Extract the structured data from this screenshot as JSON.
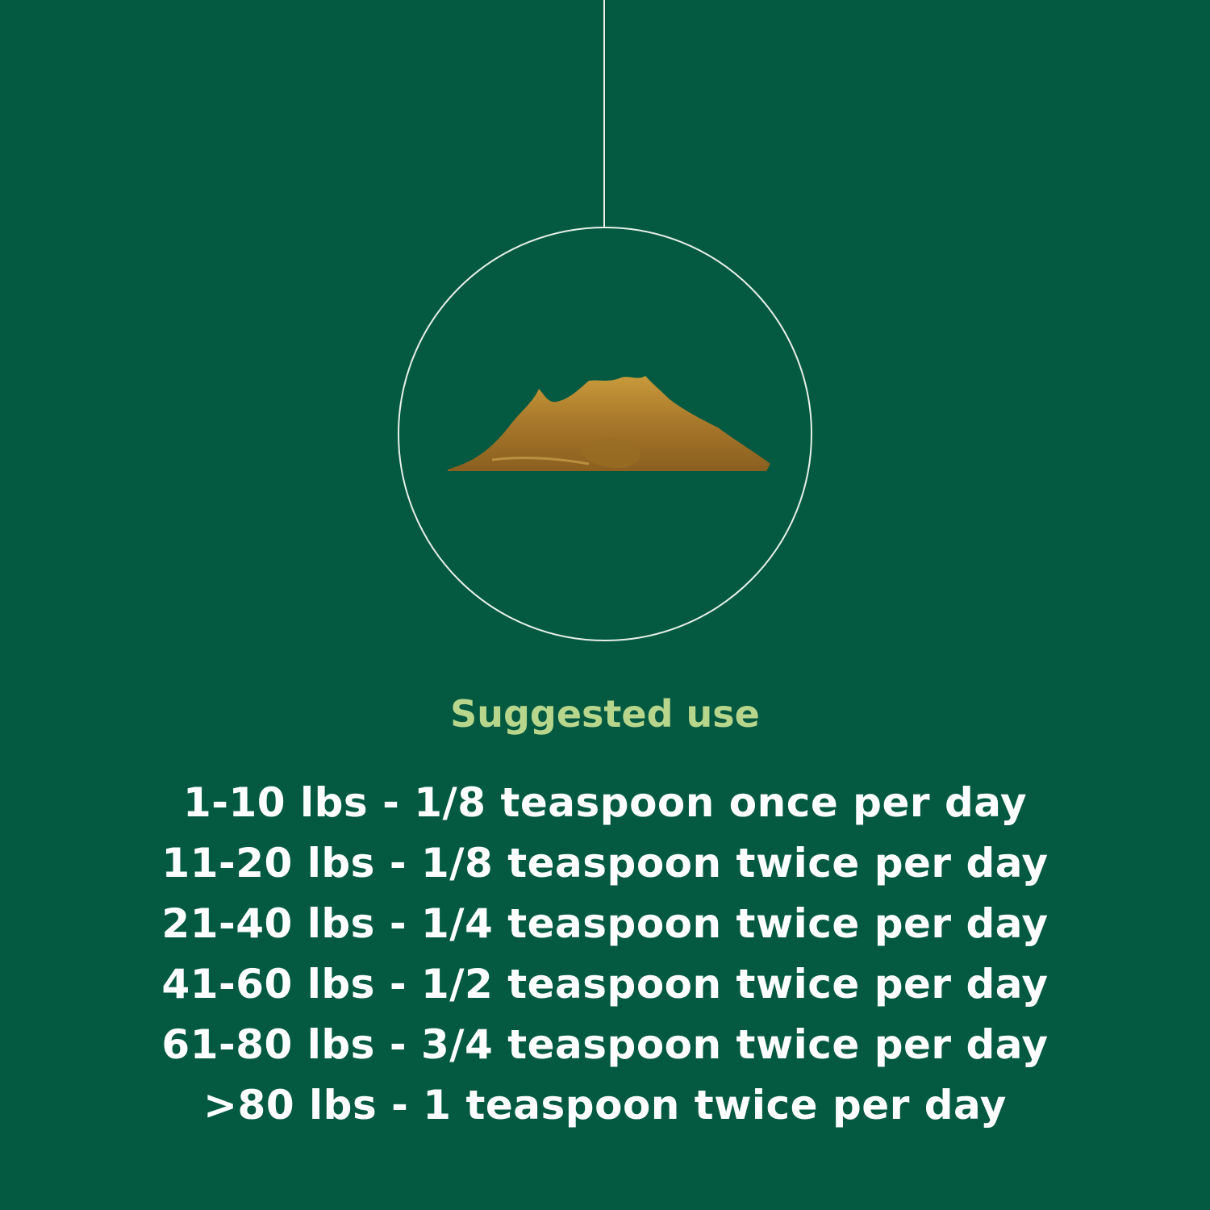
{
  "background_color": "#035a41",
  "accent_color": "#b7d68c",
  "image": {
    "icon": "powder-pile-icon"
  },
  "title": "Suggested use",
  "uses": [
    "1-10 lbs - 1/8 teaspoon once per day",
    "11-20 lbs - 1/8 teaspoon twice per day",
    "21-40 lbs - 1/4 teaspoon twice per day",
    "41-60 lbs - 1/2 teaspoon twice per day",
    "61-80 lbs - 3/4 teaspoon twice per day",
    ">80 lbs - 1 teaspoon twice per day"
  ]
}
